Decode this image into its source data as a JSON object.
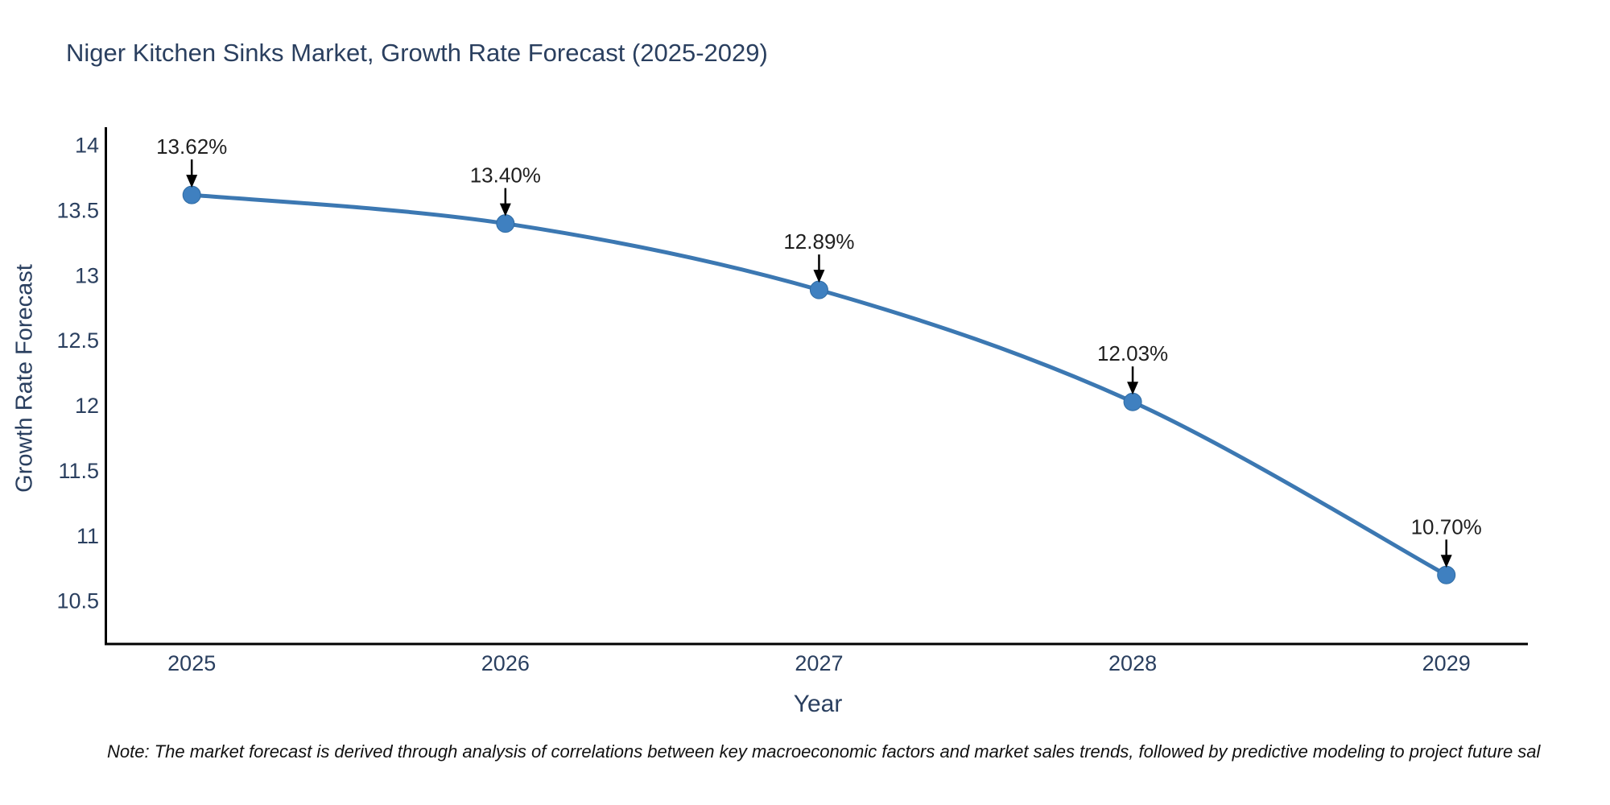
{
  "chart_data": {
    "type": "line",
    "title": "Niger Kitchen Sinks Market, Growth Rate Forecast (2025-2029)",
    "xlabel": "Year",
    "ylabel": "Growth Rate Forecast",
    "x": [
      2025,
      2026,
      2027,
      2028,
      2029
    ],
    "values": [
      13.62,
      13.4,
      12.89,
      12.03,
      10.7
    ],
    "point_labels": [
      "13.62%",
      "13.40%",
      "12.89%",
      "12.03%",
      "10.70%"
    ],
    "x_tick_labels": [
      "2025",
      "2026",
      "2027",
      "2028",
      "2029"
    ],
    "x_tick_values": [
      2025,
      2026,
      2027,
      2028,
      2029
    ],
    "y_tick_labels": [
      "10.5",
      "11",
      "11.5",
      "12",
      "12.5",
      "13",
      "13.5",
      "14"
    ],
    "y_tick_values": [
      10.5,
      11,
      11.5,
      12,
      12.5,
      13,
      13.5,
      14
    ],
    "xlim": [
      2024.73,
      2029.26
    ],
    "ylim": [
      10.17,
      14.14
    ],
    "grid": false,
    "legend": "none",
    "line_shape": "spline",
    "colors": {
      "line": "#3c78b2",
      "marker": "#3f80c0",
      "marker_edge": "#2f6ba3",
      "axis": "#000000",
      "tick_text": "#2a3f5f",
      "annotation_text": "#1f1f1f",
      "annotation_arrow": "#000000"
    }
  },
  "note": {
    "text": "Note: The market forecast is derived through analysis of correlations between key macroeconomic factors and market sales trends, followed by predictive modeling to project future sal"
  }
}
